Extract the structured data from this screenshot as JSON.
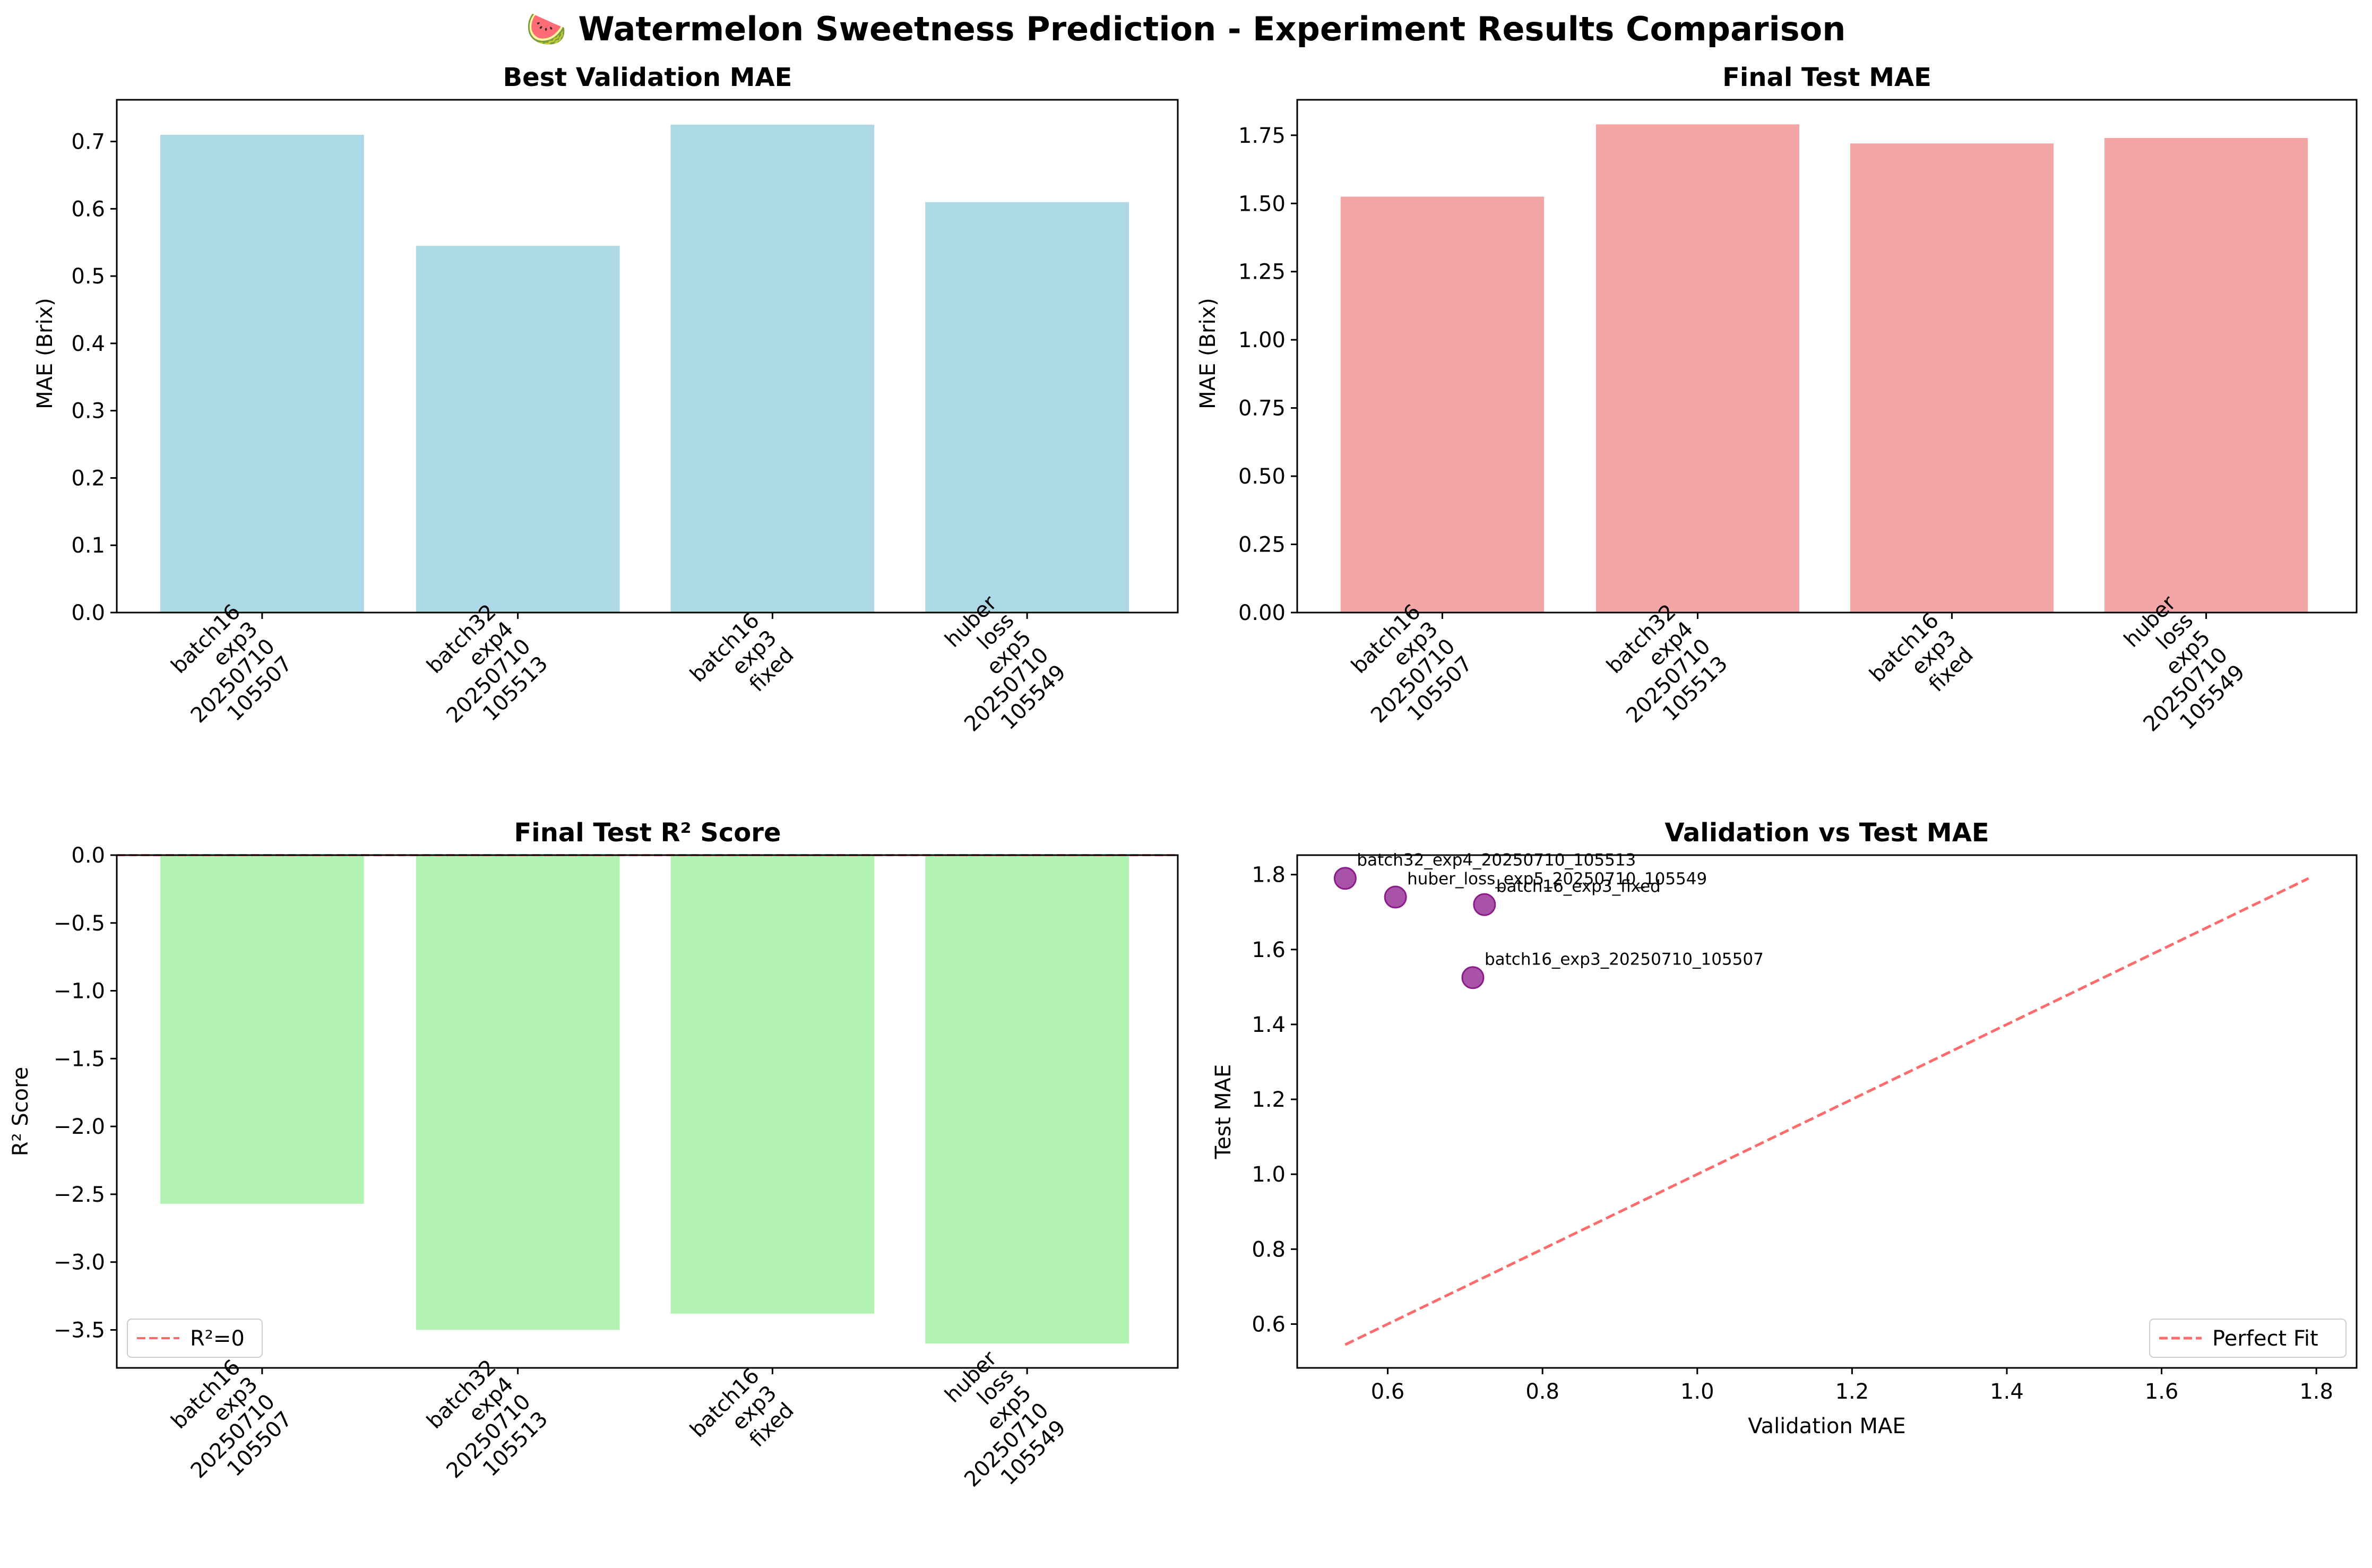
{
  "figure": {
    "title": "🍉 Watermelon Sweetness Prediction - Experiment Results Comparison",
    "colors": {
      "val_bar": "#ADD8E6",
      "test_bar": "#F4A6A6",
      "r2_bar": "#B2F2B2",
      "scatter": "#8B1A8B",
      "ref_line": "#FF6B6B"
    }
  },
  "chart_data": [
    {
      "type": "bar",
      "title": "Best Validation MAE",
      "ylabel": "MAE (Brix)",
      "xlabel": "",
      "categories": [
        "batch16\nexp3\n20250710\n105507",
        "batch32\nexp4\n20250710\n105513",
        "batch16\nexp3\nfixed",
        "huber\nloss\nexp5\n20250710\n105549"
      ],
      "values": [
        0.71,
        0.545,
        0.725,
        0.61
      ],
      "ylim": [
        0,
        0.762
      ],
      "yticks": [
        "0.0",
        "0.1",
        "0.2",
        "0.3",
        "0.4",
        "0.5",
        "0.6",
        "0.7"
      ],
      "ytick_values": [
        0,
        0.1,
        0.2,
        0.3,
        0.4,
        0.5,
        0.6,
        0.7
      ],
      "grid": false
    },
    {
      "type": "bar",
      "title": "Final Test MAE",
      "ylabel": "MAE (Brix)",
      "xlabel": "",
      "categories": [
        "batch16\nexp3\n20250710\n105507",
        "batch32\nexp4\n20250710\n105513",
        "batch16\nexp3\nfixed",
        "huber\nloss\nexp5\n20250710\n105549"
      ],
      "values": [
        1.525,
        1.79,
        1.72,
        1.74
      ],
      "ylim": [
        0,
        1.88
      ],
      "yticks": [
        "0.00",
        "0.25",
        "0.50",
        "0.75",
        "1.00",
        "1.25",
        "1.50",
        "1.75"
      ],
      "ytick_values": [
        0,
        0.25,
        0.5,
        0.75,
        1.0,
        1.25,
        1.5,
        1.75
      ],
      "grid": false
    },
    {
      "type": "bar",
      "title": "Final Test R² Score",
      "ylabel": "R² Score",
      "xlabel": "",
      "categories": [
        "batch16\nexp3\n20250710\n105507",
        "batch32\nexp4\n20250710\n105513",
        "batch16\nexp3\nfixed",
        "huber\nloss\nexp5\n20250710\n105549"
      ],
      "values": [
        -2.57,
        -3.5,
        -3.38,
        -3.6
      ],
      "ylim": [
        -3.78,
        0
      ],
      "yticks": [
        "0.0",
        "−0.5",
        "−1.0",
        "−1.5",
        "−2.0",
        "−2.5",
        "−3.0",
        "−3.5"
      ],
      "ytick_values": [
        0,
        -0.5,
        -1.0,
        -1.5,
        -2.0,
        -2.5,
        -3.0,
        -3.5
      ],
      "reference_line": {
        "y": 0,
        "label": "R²=0"
      },
      "legend": "bottom-left",
      "grid": false
    },
    {
      "type": "scatter",
      "title": "Validation vs Test MAE",
      "xlabel": "Validation MAE",
      "ylabel": "Test MAE",
      "points": [
        {
          "x": 0.71,
          "y": 1.525,
          "label": "batch16_exp3_20250710_105507"
        },
        {
          "x": 0.545,
          "y": 1.79,
          "label": "batch32_exp4_20250710_105513"
        },
        {
          "x": 0.725,
          "y": 1.72,
          "label": "batch16_exp3_fixed"
        },
        {
          "x": 0.61,
          "y": 1.74,
          "label": "huber_loss_exp5_20250710_105549"
        }
      ],
      "reference_line": {
        "from": [
          0.545,
          0.545
        ],
        "to": [
          1.79,
          1.79
        ],
        "label": "Perfect Fit"
      },
      "xlim": [
        0.483,
        1.852
      ],
      "ylim": [
        0.483,
        1.852
      ],
      "xticks": [
        "0.6",
        "0.8",
        "1.0",
        "1.2",
        "1.4",
        "1.6",
        "1.8"
      ],
      "xtick_values": [
        0.6,
        0.8,
        1.0,
        1.2,
        1.4,
        1.6,
        1.8
      ],
      "yticks": [
        "0.6",
        "0.8",
        "1.0",
        "1.2",
        "1.4",
        "1.6",
        "1.8"
      ],
      "ytick_values": [
        0.6,
        0.8,
        1.0,
        1.2,
        1.4,
        1.6,
        1.8
      ],
      "legend": "bottom-right",
      "grid": false
    }
  ]
}
